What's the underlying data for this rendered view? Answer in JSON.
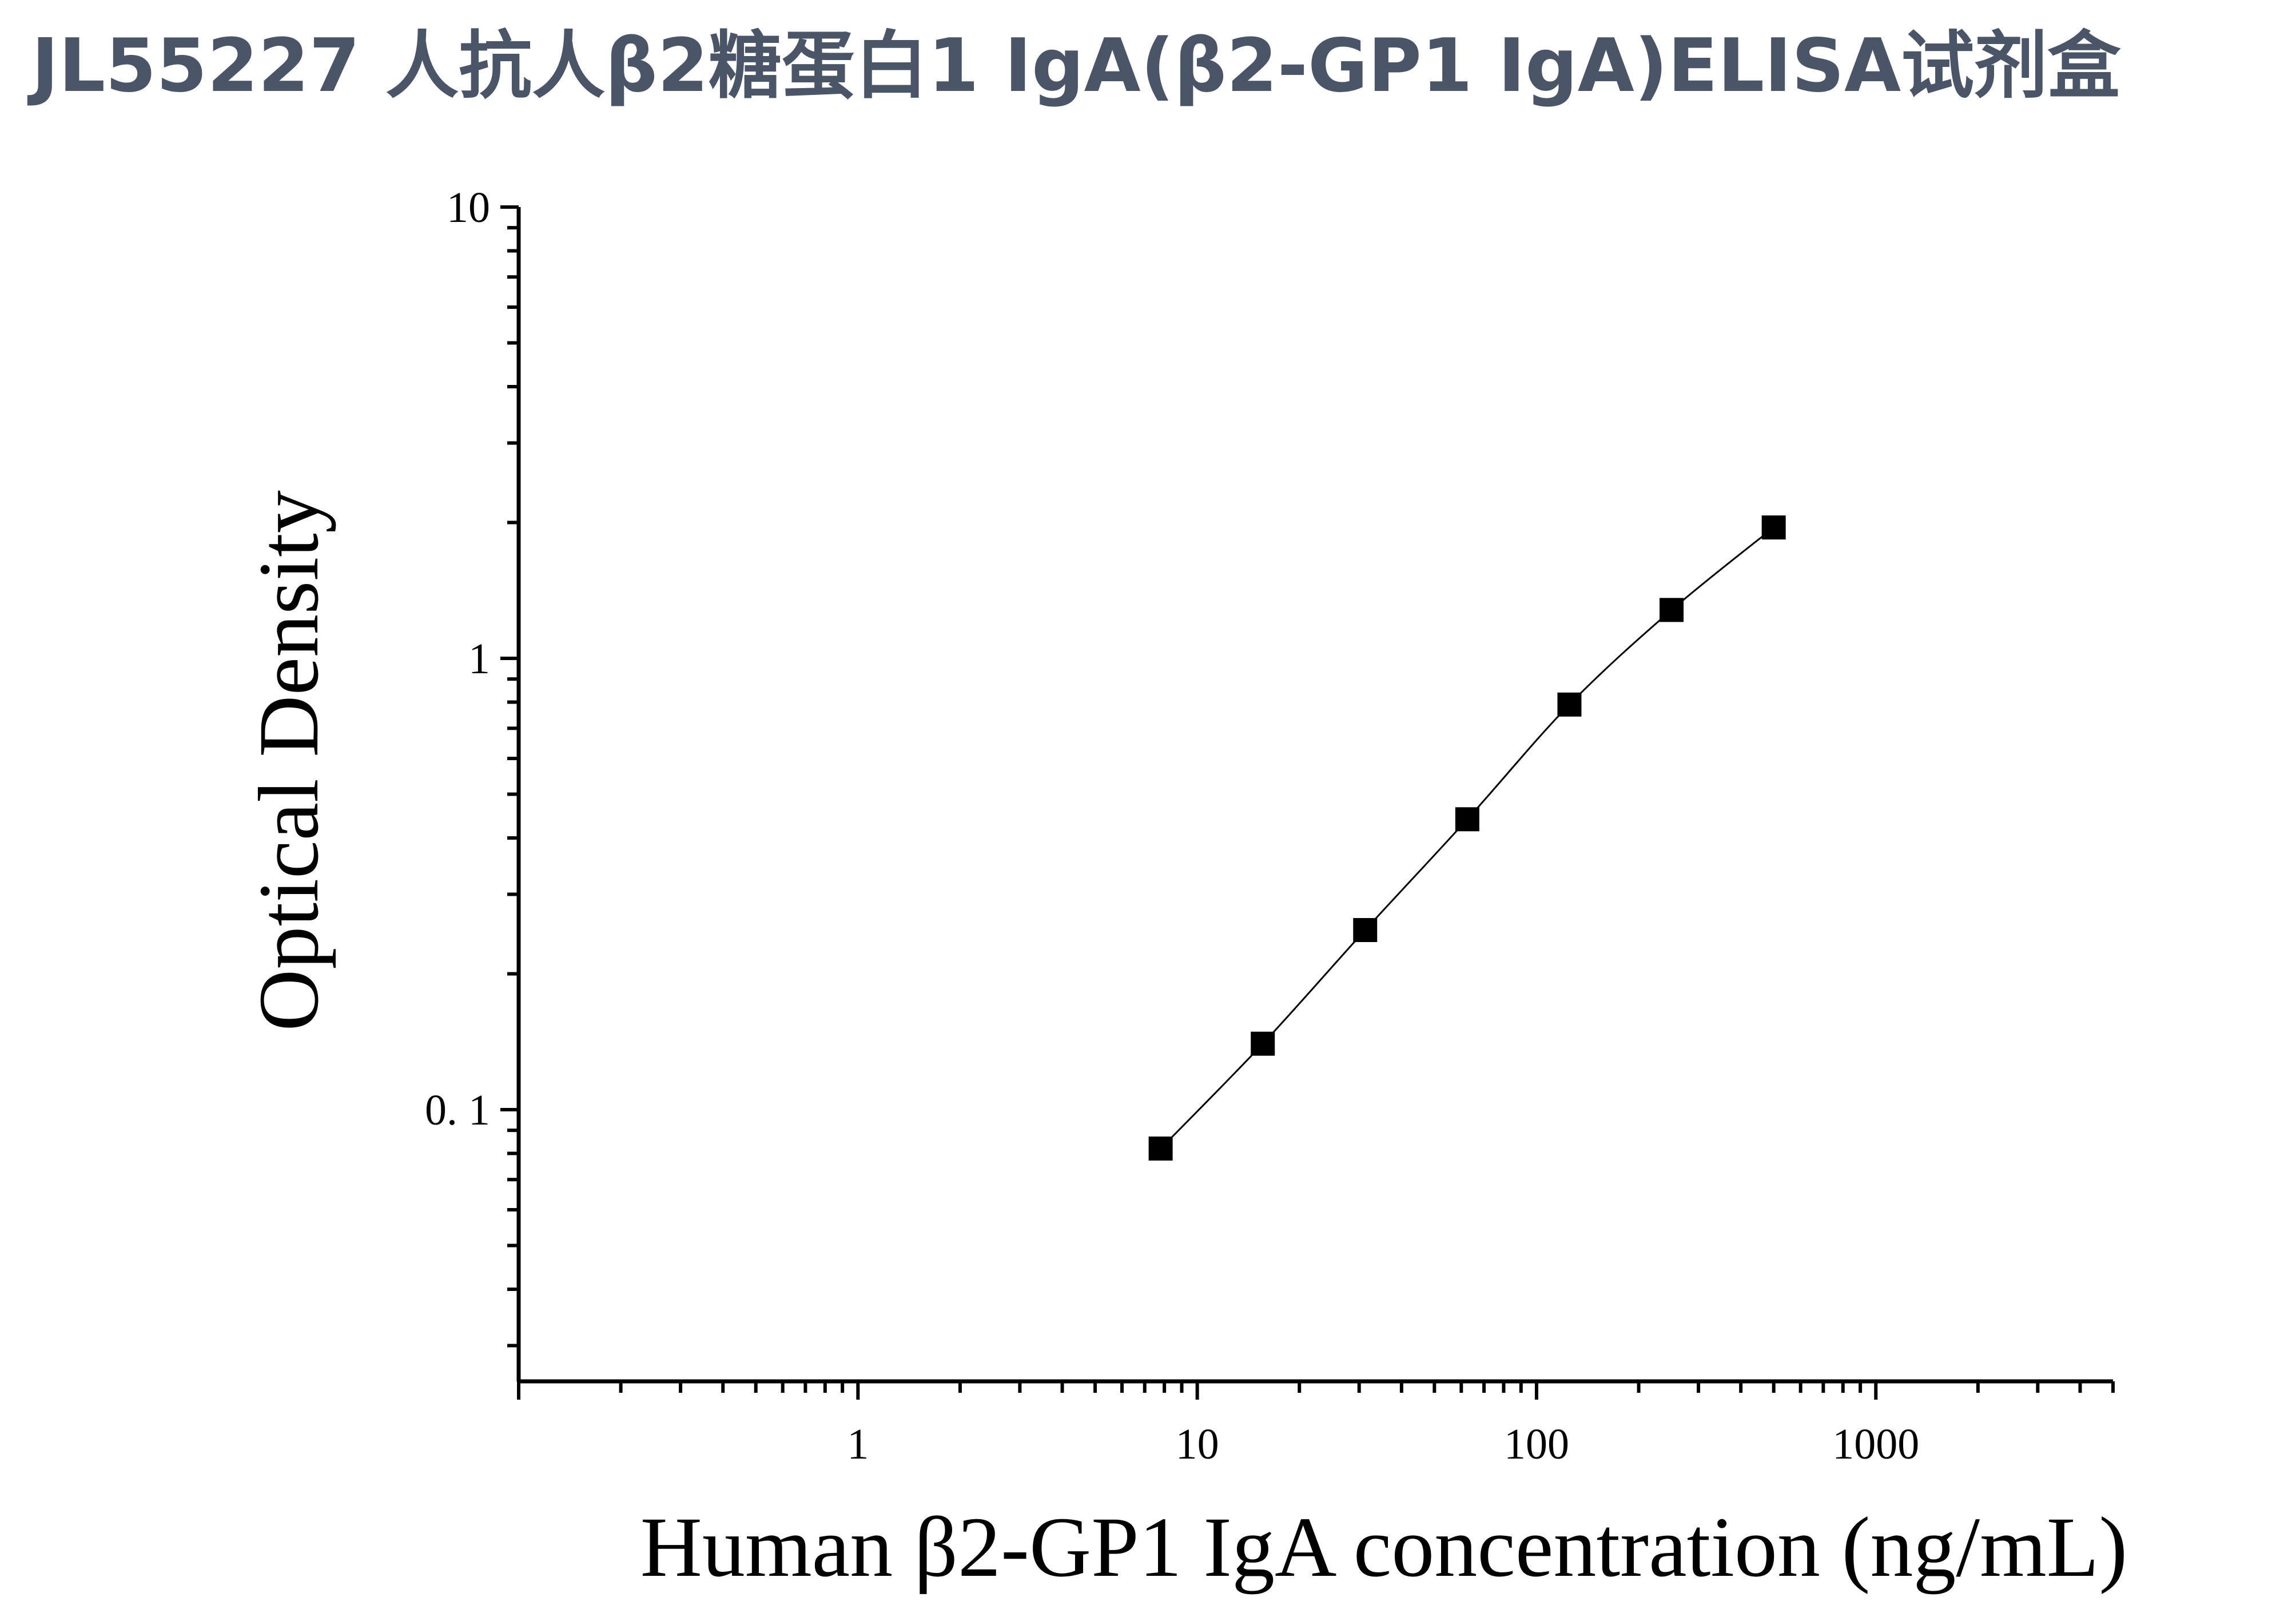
{
  "title": "JL55227 人抗人β2糖蛋白1 IgA(β2-GP1 IgA)ELISA试剂盒",
  "colors": {
    "title": "#4a5568",
    "axis": "#000000",
    "marker": "#000000",
    "curve": "#000000"
  },
  "chart_data": {
    "type": "scatter",
    "xscale": "log",
    "yscale": "log",
    "xlim": [
      0.1,
      5000
    ],
    "ylim": [
      0.025,
      10
    ],
    "xticks": [
      1,
      10,
      100,
      1000
    ],
    "xtick_labels": [
      "1",
      "10",
      "100",
      "1000"
    ],
    "yticks": [
      0.1,
      1,
      10
    ],
    "ytick_labels": [
      "0. 1",
      "1",
      "10"
    ],
    "xlabel": "Human β2-GP1 IgA concentration (ng/mL)",
    "ylabel": "Optical Density",
    "grid": false,
    "legend": "none",
    "series": [
      {
        "marker": "square",
        "fit_curve": true,
        "x": [
          7.8,
          15.6,
          31.25,
          62.5,
          125,
          250,
          500
        ],
        "y": [
          0.082,
          0.14,
          0.25,
          0.44,
          0.79,
          1.28,
          1.95
        ]
      }
    ]
  }
}
